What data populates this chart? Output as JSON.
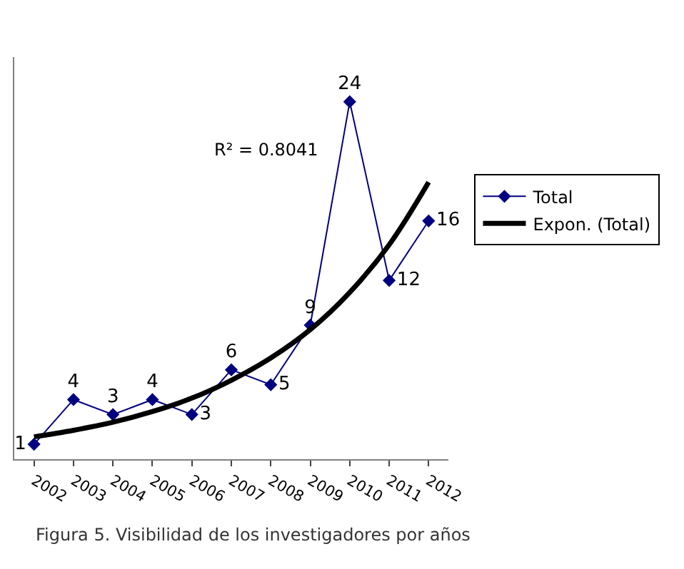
{
  "chart_data": {
    "type": "line",
    "categories": [
      "2002",
      "2003",
      "2004",
      "2005",
      "2006",
      "2007",
      "2008",
      "2009",
      "2010",
      "2011",
      "2012"
    ],
    "series": [
      {
        "name": "Total",
        "color": "#000080",
        "marker": "diamond",
        "data_labels": true,
        "values": [
          1,
          4,
          3,
          4,
          3,
          6,
          5,
          9,
          24,
          12,
          16
        ]
      },
      {
        "name": "Expon. (Total)",
        "color": "#000000",
        "marker": "none",
        "values": [
          1.5,
          1.94,
          2.48,
          3.2,
          4.1,
          5.3,
          6.8,
          8.7,
          11.2,
          14.4,
          18.6
        ]
      }
    ],
    "ylim": [
      0,
      27
    ],
    "tick_labels": "x",
    "legend": "right",
    "annotations": [
      "R² = 0.8041",
      "Figura 5. Visibilidad de los investigadores por años"
    ]
  }
}
